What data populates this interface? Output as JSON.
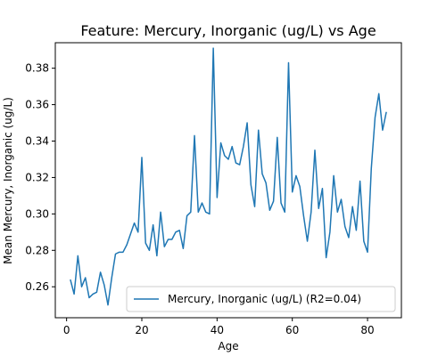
{
  "chart_data": {
    "type": "line",
    "title": "Feature: Mercury, Inorganic (ug/L) vs Age",
    "xlabel": "Age",
    "ylabel": "Mean Mercury, Inorganic (ug/L)",
    "xlim": [
      -3,
      89
    ],
    "ylim": [
      0.243,
      0.394
    ],
    "xticks": [
      0,
      20,
      40,
      60,
      80
    ],
    "yticks": [
      0.26,
      0.28,
      0.3,
      0.32,
      0.34,
      0.36,
      0.38
    ],
    "ytick_labels": [
      "0.26",
      "0.28",
      "0.30",
      "0.32",
      "0.34",
      "0.36",
      "0.38"
    ],
    "grid": false,
    "legend_position": "lower-right",
    "series_color": "#1f77b4",
    "series": [
      {
        "name": "Mercury, Inorganic (ug/L) (R2=0.04)",
        "x": [
          1,
          2,
          3,
          4,
          5,
          6,
          7,
          8,
          9,
          10,
          11,
          12,
          13,
          14,
          15,
          16,
          17,
          18,
          19,
          20,
          21,
          22,
          23,
          24,
          25,
          26,
          27,
          28,
          29,
          30,
          31,
          32,
          33,
          34,
          35,
          36,
          37,
          38,
          39,
          40,
          41,
          42,
          43,
          44,
          45,
          46,
          47,
          48,
          49,
          50,
          51,
          52,
          53,
          54,
          55,
          56,
          57,
          58,
          59,
          60,
          61,
          62,
          63,
          64,
          65,
          66,
          67,
          68,
          69,
          70,
          71,
          72,
          73,
          74,
          75,
          76,
          77,
          78,
          79,
          80,
          81,
          82,
          83,
          84,
          85
        ],
        "y": [
          0.264,
          0.256,
          0.277,
          0.26,
          0.265,
          0.254,
          0.256,
          0.257,
          0.268,
          0.261,
          0.25,
          0.265,
          0.278,
          0.279,
          0.279,
          0.283,
          0.289,
          0.295,
          0.29,
          0.331,
          0.284,
          0.28,
          0.294,
          0.277,
          0.301,
          0.282,
          0.286,
          0.286,
          0.29,
          0.291,
          0.281,
          0.299,
          0.301,
          0.343,
          0.301,
          0.306,
          0.301,
          0.3,
          0.391,
          0.309,
          0.339,
          0.332,
          0.33,
          0.337,
          0.328,
          0.327,
          0.337,
          0.35,
          0.316,
          0.304,
          0.346,
          0.322,
          0.317,
          0.302,
          0.307,
          0.342,
          0.306,
          0.301,
          0.383,
          0.312,
          0.321,
          0.315,
          0.299,
          0.285,
          0.301,
          0.335,
          0.303,
          0.314,
          0.276,
          0.29,
          0.321,
          0.301,
          0.308,
          0.293,
          0.287,
          0.304,
          0.291,
          0.318,
          0.285,
          0.279,
          0.325,
          0.353,
          0.366,
          0.346,
          0.356
        ]
      }
    ]
  }
}
